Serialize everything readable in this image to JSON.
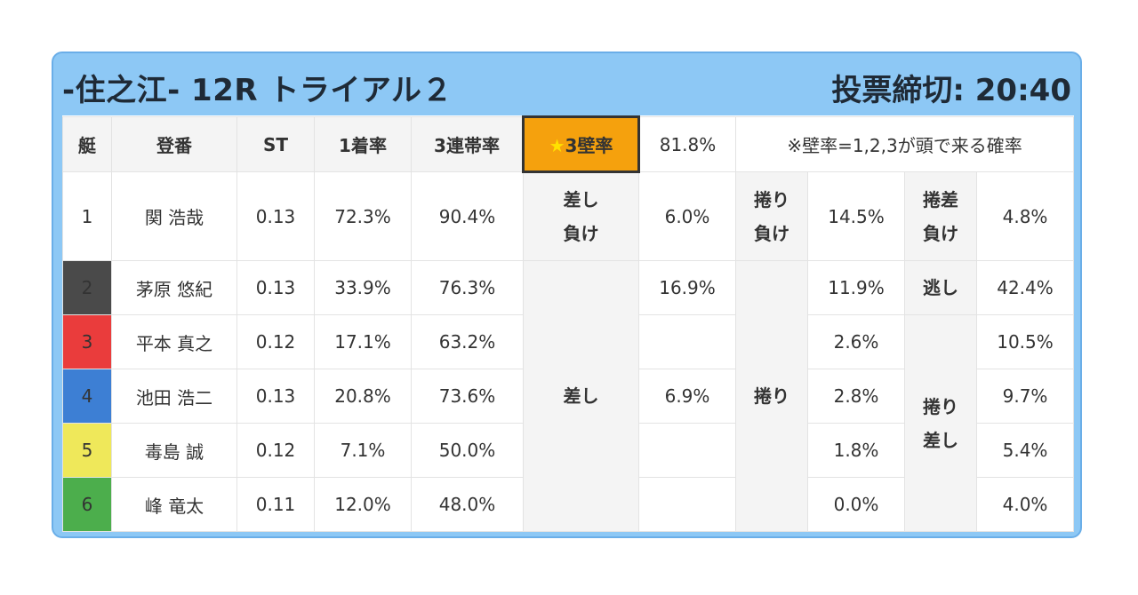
{
  "header": {
    "title": "-住之江- 12R トライアル２",
    "deadline": "投票締切: 20:40"
  },
  "columns": {
    "boat": "艇",
    "racer": "登番",
    "st": "ST",
    "win_rate": "1着率",
    "top3_rate": "3連帯率",
    "wall_star": "★",
    "wall_label": "3壁率",
    "wall_value": "81.8%",
    "note": "※壁率=1,2,3が頭で来る確率"
  },
  "rows": [
    {
      "boat": "1",
      "racer": "関 浩哉",
      "st": "0.13",
      "win": "72.3%",
      "top3": "90.4%"
    },
    {
      "boat": "2",
      "racer": "茅原 悠紀",
      "st": "0.13",
      "win": "33.9%",
      "top3": "76.3%"
    },
    {
      "boat": "3",
      "racer": "平本 真之",
      "st": "0.12",
      "win": "17.1%",
      "top3": "63.2%"
    },
    {
      "boat": "4",
      "racer": "池田 浩二",
      "st": "0.13",
      "win": "20.8%",
      "top3": "73.6%"
    },
    {
      "boat": "5",
      "racer": "毒島 誠",
      "st": "0.12",
      "win": "7.1%",
      "top3": "50.0%"
    },
    {
      "boat": "6",
      "racer": "峰 竜太",
      "st": "0.11",
      "win": "12.0%",
      "top3": "48.0%"
    }
  ],
  "patterns": {
    "sashi_make": {
      "line1": "差し",
      "line2": "負け",
      "value": "6.0%"
    },
    "makuri_make": {
      "line1": "捲り",
      "line2": "負け",
      "value": "14.5%"
    },
    "makurizashi_make": {
      "line1": "捲差",
      "line2": "負け",
      "value": "4.8%"
    },
    "sashi": {
      "label": "差し",
      "values": [
        "16.9%",
        "",
        "6.9%",
        "",
        ""
      ]
    },
    "makuri": {
      "label": "捲り",
      "values": [
        "11.9%",
        "2.6%",
        "2.8%",
        "1.8%",
        "0.0%"
      ]
    },
    "nige": {
      "label": "逃し",
      "value": "42.4%"
    },
    "makurizashi": {
      "line1": "捲り",
      "line2": "差し",
      "values": [
        "10.5%",
        "9.7%",
        "5.4%",
        "4.0%"
      ]
    }
  },
  "colors": {
    "header_bg": "#8dc8f5",
    "wall_bg": "#f5a10d",
    "boat2": "#4a4a4a",
    "boat3": "#ea3c3c",
    "boat4": "#3d7fd4",
    "boat5": "#efe85a",
    "boat6": "#4cae4c"
  }
}
